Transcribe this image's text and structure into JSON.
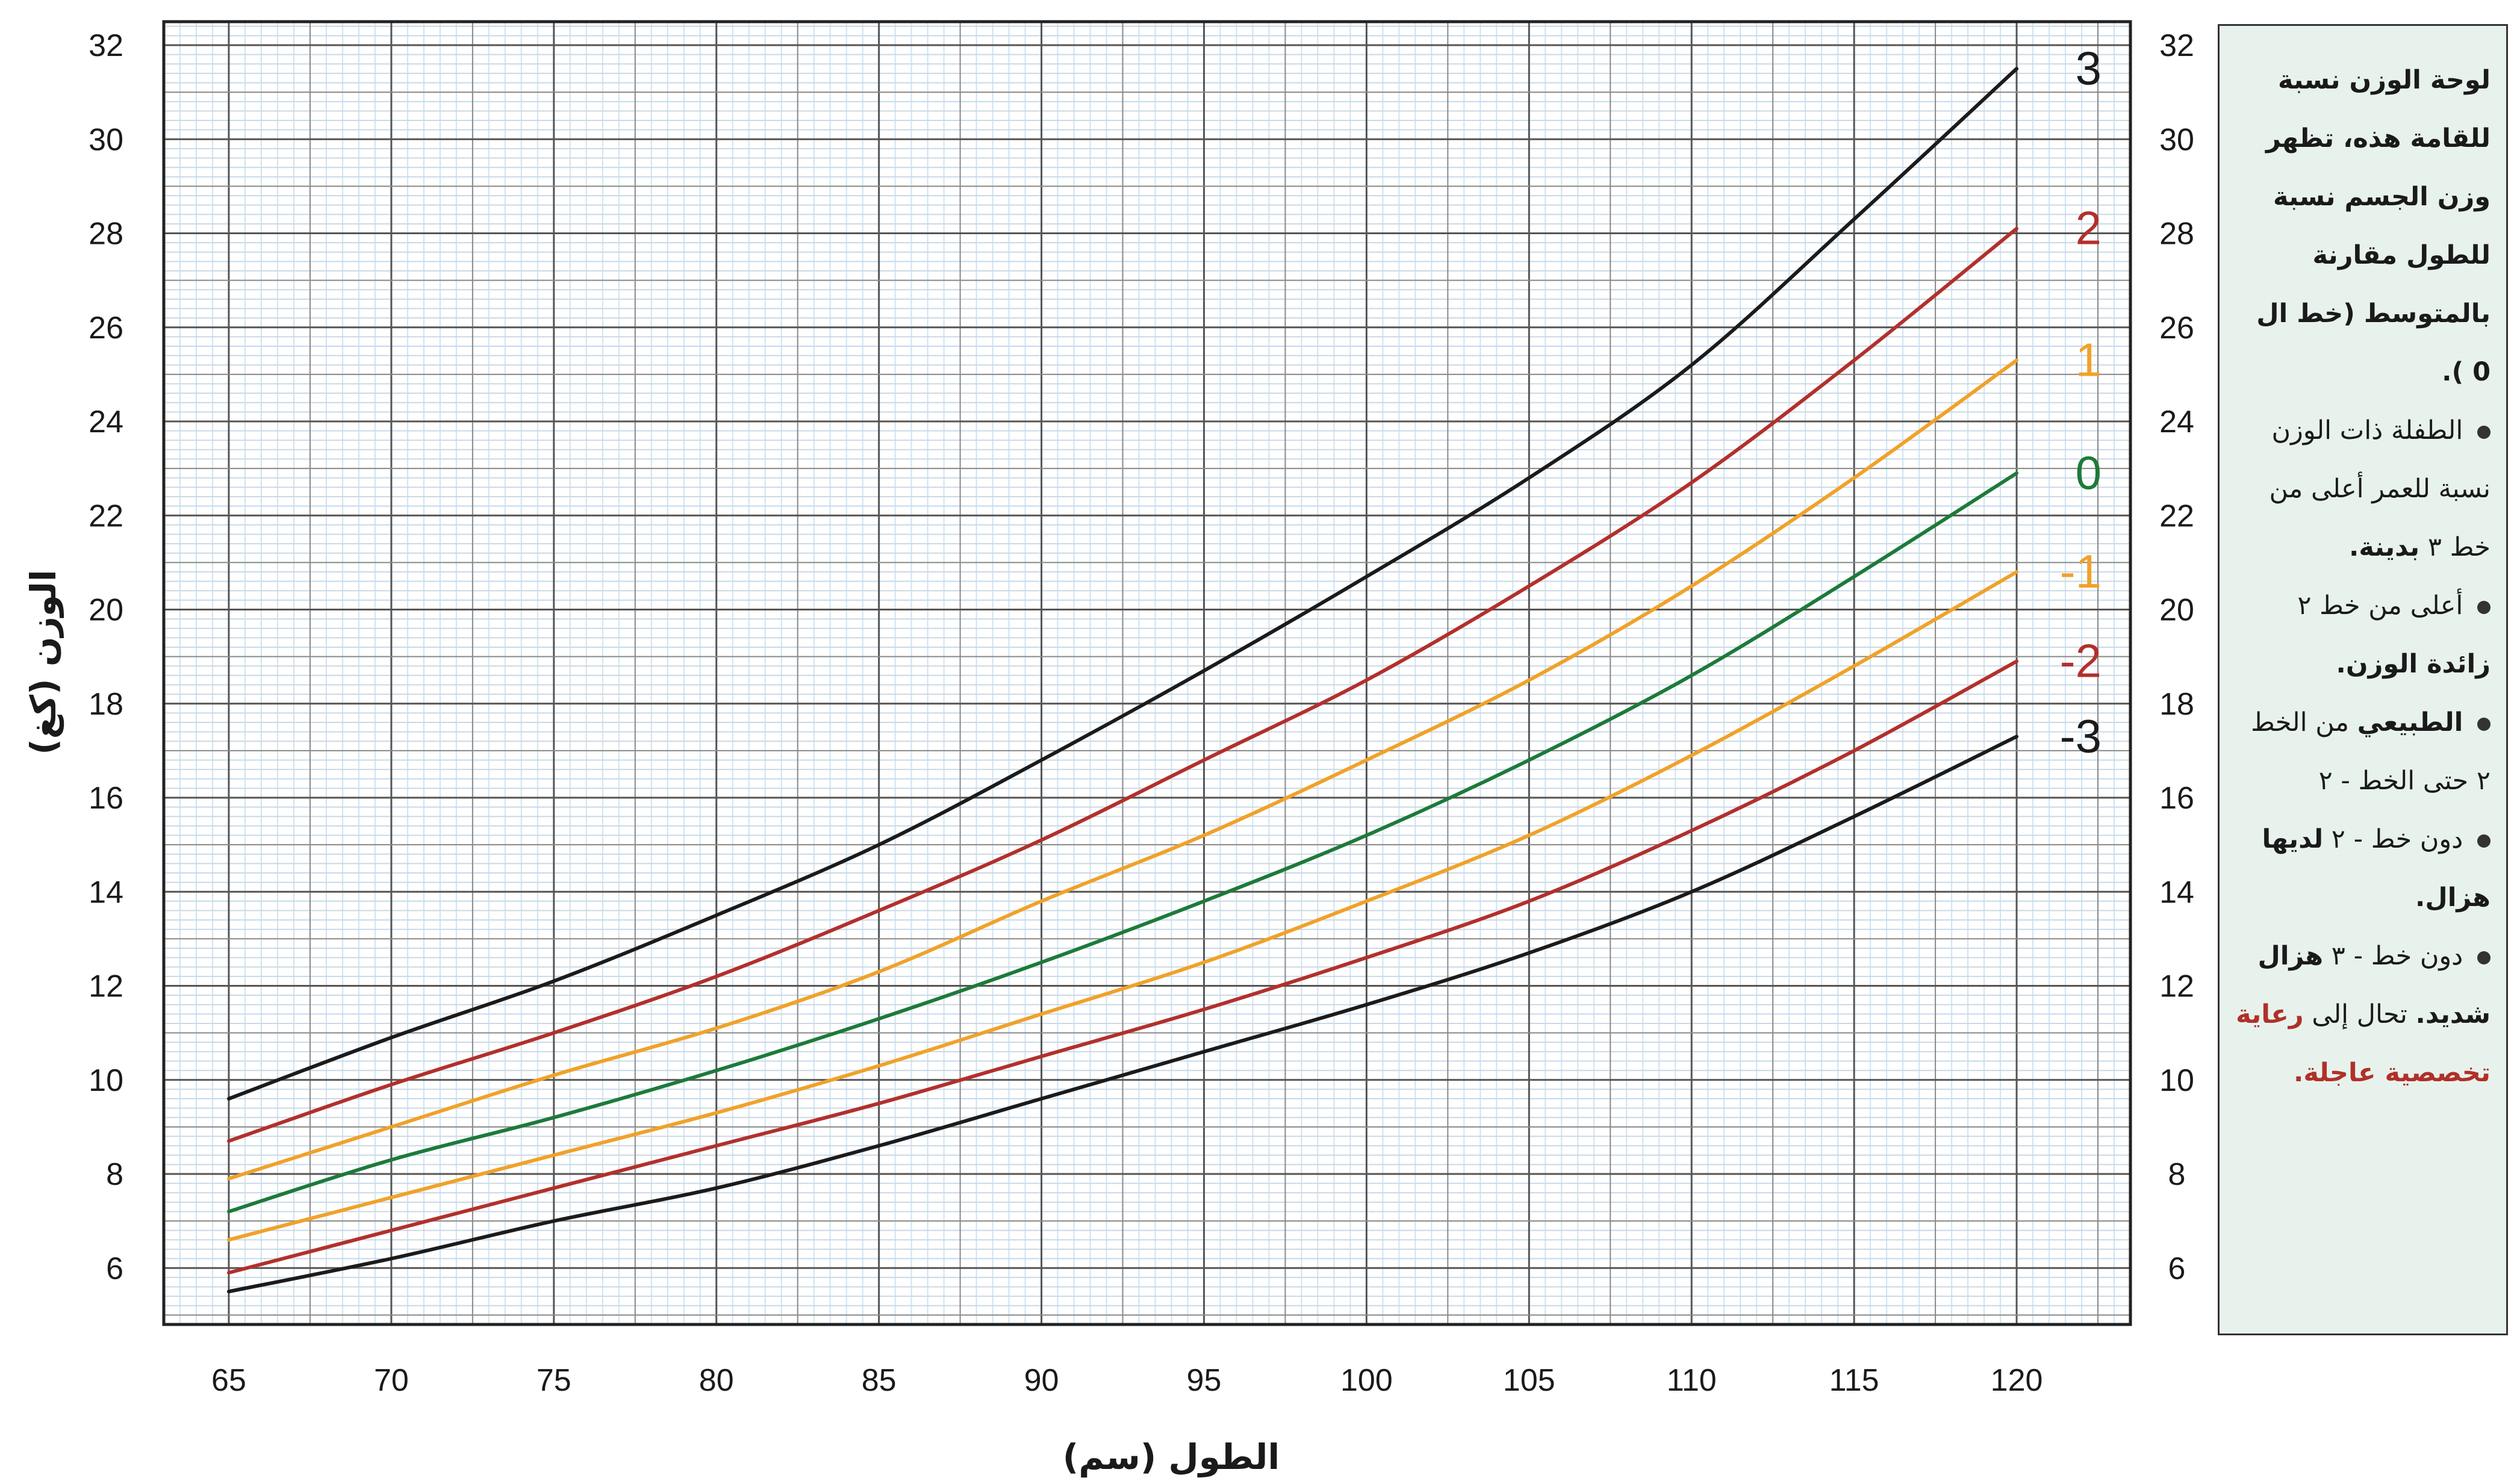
{
  "chart_data": {
    "type": "line",
    "xlabel": "الطول (سم)",
    "ylabel": "الوزن (كغ)",
    "xlim": [
      63,
      123.5
    ],
    "ylim": [
      4.8,
      32.5
    ],
    "x_ticks": [
      65,
      70,
      75,
      80,
      85,
      90,
      95,
      100,
      105,
      110,
      115,
      120
    ],
    "y_ticks": [
      6,
      8,
      10,
      12,
      14,
      16,
      18,
      20,
      22,
      24,
      26,
      28,
      30,
      32
    ],
    "grid": true,
    "x": [
      65,
      70,
      75,
      80,
      85,
      90,
      95,
      100,
      105,
      110,
      115,
      120
    ],
    "series": [
      {
        "name": "3",
        "color": "#1b1b1b",
        "values": [
          9.6,
          10.9,
          12.1,
          13.5,
          15.0,
          16.8,
          18.7,
          20.7,
          22.8,
          25.2,
          28.3,
          31.5
        ]
      },
      {
        "name": "2",
        "color": "#b2302c",
        "values": [
          8.7,
          9.9,
          11.0,
          12.2,
          13.6,
          15.1,
          16.8,
          18.5,
          20.5,
          22.7,
          25.3,
          28.1
        ]
      },
      {
        "name": "1",
        "color": "#f0a229",
        "values": [
          7.9,
          9.0,
          10.1,
          11.1,
          12.3,
          13.8,
          15.2,
          16.8,
          18.5,
          20.5,
          22.8,
          25.3
        ]
      },
      {
        "name": "0",
        "color": "#1d7a3a",
        "values": [
          7.2,
          8.3,
          9.2,
          10.2,
          11.3,
          12.5,
          13.8,
          15.2,
          16.8,
          18.6,
          20.7,
          22.9
        ]
      },
      {
        "name": "-1",
        "color": "#f0a229",
        "values": [
          6.6,
          7.5,
          8.4,
          9.3,
          10.3,
          11.4,
          12.5,
          13.8,
          15.2,
          16.9,
          18.8,
          20.8
        ]
      },
      {
        "name": "-2",
        "color": "#b2302c",
        "values": [
          5.9,
          6.8,
          7.7,
          8.6,
          9.5,
          10.5,
          11.5,
          12.6,
          13.8,
          15.3,
          17.0,
          18.9
        ]
      },
      {
        "name": "-3",
        "color": "#1b1b1b",
        "values": [
          5.5,
          6.2,
          7.0,
          7.7,
          8.6,
          9.6,
          10.6,
          11.6,
          12.7,
          14.0,
          15.6,
          17.3
        ]
      }
    ]
  },
  "info": {
    "intro": "لوحة الوزن نسبة للقامة هذه، تظهر وزن الجسم نسبة للطول مقارنة بالمتوسط (خط ال 0 ).",
    "item1_text": "الطفلة ذات الوزن نسبة للعمر أعلى من خط ٣",
    "item1_bold": "بدينة.",
    "item2_text": "أعلى من خط ٢",
    "item2_bold": "زائدة الوزن.",
    "item3_bold": "الطبيعي",
    "item3_text": "من الخط ٢ حتى الخط - ٢",
    "item4_text": "دون خط - ٢",
    "item4_bold": "لديها هزال.",
    "item5_text": "دون خط - ٣",
    "item5_bold": "هزال شديد.",
    "referral_text": "تحال إلى",
    "referral_red": "رعاية تخصصية عاجلة."
  }
}
